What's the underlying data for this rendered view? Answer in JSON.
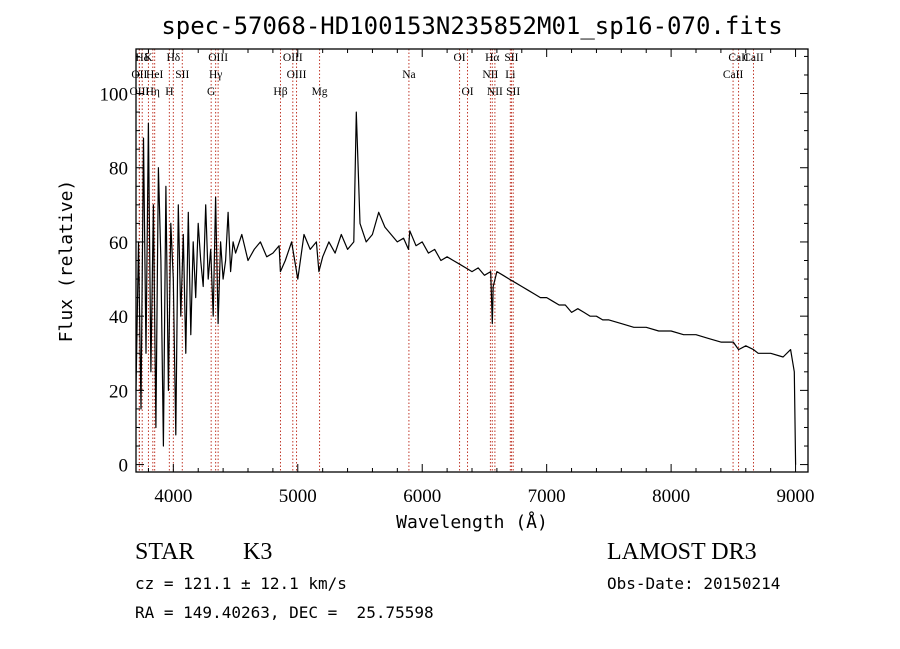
{
  "chart_data": {
    "type": "line",
    "title": "spec-57068-HD100153N235852M01_sp16-070.fits",
    "xlabel": "Wavelength (Å)",
    "ylabel": "Flux (relative)",
    "xlim": [
      3700,
      9100
    ],
    "ylim": [
      -2,
      112
    ],
    "xticks": [
      4000,
      5000,
      6000,
      7000,
      8000,
      9000
    ],
    "yticks": [
      0,
      20,
      40,
      60,
      80,
      100
    ],
    "series": [
      {
        "name": "flux",
        "x": [
          3700,
          3720,
          3740,
          3760,
          3780,
          3800,
          3820,
          3840,
          3860,
          3880,
          3900,
          3920,
          3940,
          3960,
          3980,
          4000,
          4020,
          4040,
          4060,
          4080,
          4100,
          4120,
          4140,
          4160,
          4180,
          4200,
          4220,
          4240,
          4260,
          4280,
          4300,
          4320,
          4340,
          4360,
          4380,
          4400,
          4420,
          4440,
          4460,
          4480,
          4500,
          4550,
          4600,
          4650,
          4700,
          4750,
          4800,
          4850,
          4860,
          4900,
          4950,
          5000,
          5050,
          5100,
          5150,
          5170,
          5200,
          5250,
          5300,
          5350,
          5400,
          5450,
          5470,
          5500,
          5550,
          5600,
          5650,
          5700,
          5750,
          5800,
          5850,
          5890,
          5900,
          5950,
          6000,
          6050,
          6100,
          6150,
          6200,
          6250,
          6300,
          6350,
          6400,
          6450,
          6500,
          6550,
          6563,
          6570,
          6600,
          6650,
          6700,
          6750,
          6800,
          6850,
          6900,
          6950,
          7000,
          7050,
          7100,
          7150,
          7200,
          7250,
          7300,
          7350,
          7400,
          7450,
          7500,
          7600,
          7700,
          7800,
          7900,
          8000,
          8100,
          8200,
          8300,
          8400,
          8500,
          8542,
          8600,
          8662,
          8700,
          8800,
          8900,
          8960,
          8990,
          9000
        ],
        "values": [
          20,
          60,
          15,
          88,
          30,
          92,
          25,
          70,
          10,
          80,
          55,
          5,
          75,
          20,
          65,
          50,
          8,
          70,
          40,
          62,
          30,
          68,
          35,
          60,
          45,
          65,
          55,
          48,
          70,
          50,
          58,
          40,
          72,
          38,
          60,
          50,
          55,
          68,
          52,
          60,
          57,
          62,
          55,
          58,
          60,
          56,
          57,
          59,
          52,
          55,
          60,
          50,
          62,
          58,
          60,
          52,
          56,
          60,
          57,
          62,
          58,
          60,
          95,
          65,
          60,
          62,
          68,
          64,
          62,
          60,
          61,
          58,
          63,
          59,
          60,
          57,
          58,
          55,
          56,
          55,
          54,
          53,
          52,
          53,
          51,
          52,
          38,
          48,
          52,
          51,
          50,
          49,
          48,
          47,
          46,
          45,
          45,
          44,
          43,
          43,
          41,
          42,
          41,
          40,
          40,
          39,
          39,
          38,
          37,
          37,
          36,
          36,
          35,
          35,
          34,
          33,
          33,
          31,
          32,
          31,
          30,
          30,
          29,
          31,
          25,
          0
        ]
      }
    ],
    "emission_lines": [
      {
        "name": "Hδ",
        "wavelength": 3750
      },
      {
        "name": "K",
        "wavelength": 3800
      },
      {
        "name": "Hδ",
        "wavelength": 4000
      },
      {
        "name": "OIII",
        "wavelength": 4360
      },
      {
        "name": "OIII",
        "wavelength": 4960
      },
      {
        "name": "OI",
        "wavelength": 6300
      },
      {
        "name": "Hα",
        "wavelength": 6563
      },
      {
        "name": "SII",
        "wavelength": 6717
      },
      {
        "name": "CaII",
        "wavelength": 8542
      },
      {
        "name": "OII",
        "wavelength": 3727
      },
      {
        "name": "HeI",
        "wavelength": 3850
      },
      {
        "name": "SII",
        "wavelength": 4072
      },
      {
        "name": "Hγ",
        "wavelength": 4340
      },
      {
        "name": "OIII",
        "wavelength": 4990
      },
      {
        "name": "Na",
        "wavelength": 5893
      },
      {
        "name": "NII",
        "wavelength": 6548
      },
      {
        "name": "Li",
        "wavelength": 6708
      },
      {
        "name": "CaII",
        "wavelength": 8498
      },
      {
        "name": "OIII",
        "wavelength": 3727
      },
      {
        "name": "Hη",
        "wavelength": 3835
      },
      {
        "name": "H",
        "wavelength": 3968
      },
      {
        "name": "G",
        "wavelength": 4304
      },
      {
        "name": "Hβ",
        "wavelength": 4861
      },
      {
        "name": "Mg",
        "wavelength": 5175
      },
      {
        "name": "OI",
        "wavelength": 6364
      },
      {
        "name": "NII",
        "wavelength": 6584
      },
      {
        "name": "SII",
        "wavelength": 6731
      },
      {
        "name": "CaII",
        "wavelength": 8662
      }
    ]
  },
  "footer": {
    "object_type": "STAR",
    "subclass": "K3",
    "survey": "LAMOST DR3",
    "cz": "cz = 121.1 ± 12.1 km/s",
    "obs_date": "Obs-Date: 20150214",
    "coords": "RA = 149.40263, DEC =  25.75598"
  },
  "colors": {
    "line_marker": "#c0392b",
    "spectrum": "#000000"
  }
}
